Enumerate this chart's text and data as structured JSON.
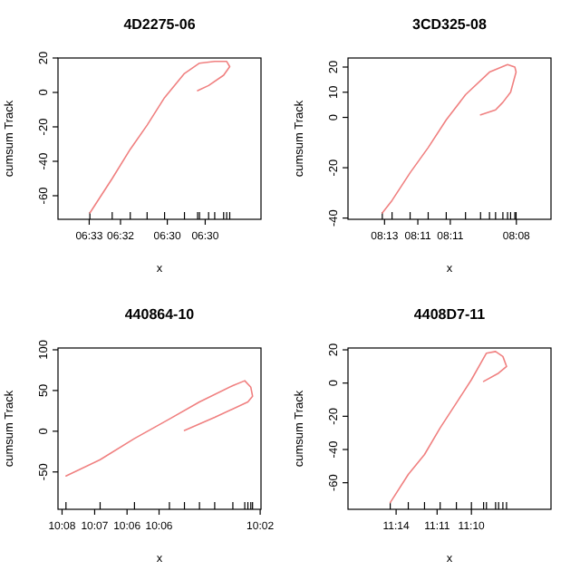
{
  "chart_data": [
    {
      "type": "line",
      "title": "4D2275-06",
      "xlabel": "x",
      "ylabel": "cumsum Track",
      "xlim": [
        6.55528,
        6.46778
      ],
      "ylim": [
        -73.7,
        20
      ],
      "yticks": [
        -60,
        -40,
        -20,
        0,
        20
      ],
      "xticks": [
        {
          "value": 6.54183,
          "label": "06:33"
        },
        {
          "value": 6.52833,
          "label": "06:32"
        },
        {
          "value": 6.50817,
          "label": "06:30"
        },
        {
          "value": 6.49183,
          "label": "06:30"
        }
      ],
      "grid": false,
      "marker": "none",
      "line_style": "solid",
      "series": [
        {
          "color": "#f08080",
          "x": [
            6.54154,
            6.53192,
            6.52413,
            6.51687,
            6.50934,
            6.50077,
            6.49429,
            6.48773,
            6.48257,
            6.48126,
            6.48388,
            6.49036,
            6.49509
          ],
          "values": [
            -70,
            -50,
            -33,
            -19,
            -3,
            11,
            17,
            18,
            18,
            15,
            10,
            4,
            1
          ]
        }
      ]
    },
    {
      "type": "line",
      "title": "3CD325-08",
      "xlabel": "x",
      "ylabel": "cumsum Track",
      "xlim": [
        8.22707,
        8.1239
      ],
      "ylim": [
        -40.5,
        23.6
      ],
      "yticks": [
        -40,
        -20,
        0,
        10,
        20
      ],
      "xticks": [
        {
          "value": 8.2085,
          "label": "08:13"
        },
        {
          "value": 8.19158,
          "label": "08:11"
        },
        {
          "value": 8.17508,
          "label": "08:11"
        },
        {
          "value": 8.1415,
          "label": "08:08"
        }
      ],
      "grid": false,
      "marker": "none",
      "line_style": "solid",
      "series": [
        {
          "color": "#f08080",
          "x": [
            8.20964,
            8.20468,
            8.1955,
            8.18632,
            8.17714,
            8.16734,
            8.15516,
            8.14598,
            8.14227,
            8.14165,
            8.14443,
            8.14835,
            8.15207,
            8.1597
          ],
          "values": [
            -38,
            -33,
            -22,
            -12,
            -1,
            9,
            18,
            21,
            20,
            18,
            10,
            6,
            3,
            1
          ]
        }
      ]
    },
    {
      "type": "line",
      "title": "440864-10",
      "xlabel": "x",
      "ylabel": "cumsum Track",
      "xlim": [
        10.14358,
        10.03958
      ],
      "ylim": [
        -95.9,
        102.2
      ],
      "yticks": [
        -50,
        0,
        50,
        100
      ],
      "xticks": [
        {
          "value": 10.1415,
          "label": "10:08"
        },
        {
          "value": 10.1248,
          "label": "10:07"
        },
        {
          "value": 10.1082,
          "label": "10:06"
        },
        {
          "value": 10.0918,
          "label": "10:06"
        },
        {
          "value": 10.04,
          "label": "10:02"
        }
      ],
      "grid": false,
      "marker": "none",
      "line_style": "solid",
      "series": [
        {
          "color": "#f08080",
          "x": [
            10.1395,
            10.122,
            10.1044,
            10.0865,
            10.0711,
            10.054,
            10.0479,
            10.0448,
            10.0439,
            10.0463,
            10.0633,
            10.0788
          ],
          "values": [
            -55,
            -35,
            -9,
            15,
            36,
            56,
            62,
            54,
            43,
            36,
            17,
            1
          ]
        }
      ]
    },
    {
      "type": "line",
      "title": "4408D7-11",
      "xlabel": "x",
      "ylabel": "cumsum Track",
      "xlim": [
        11.27048,
        11.08715
      ],
      "ylim": [
        -76,
        21.1
      ],
      "yticks": [
        -60,
        -40,
        -20,
        0,
        20
      ],
      "xticks": [
        {
          "value": 11.22703,
          "label": "11:14"
        },
        {
          "value": 11.19,
          "label": "11:11"
        },
        {
          "value": 11.15902,
          "label": "11:10"
        }
      ],
      "grid": false,
      "marker": "none",
      "line_style": "solid",
      "series": [
        {
          "color": "#f08080",
          "x": [
            11.23235,
            11.21603,
            11.20137,
            11.18725,
            11.17258,
            11.15902,
            11.14545,
            11.1372,
            11.1306,
            11.1273,
            11.13445,
            11.14802
          ],
          "values": [
            -72,
            -55,
            -43,
            -27,
            -12,
            2,
            18,
            19,
            16,
            10,
            6,
            1
          ]
        }
      ]
    }
  ]
}
